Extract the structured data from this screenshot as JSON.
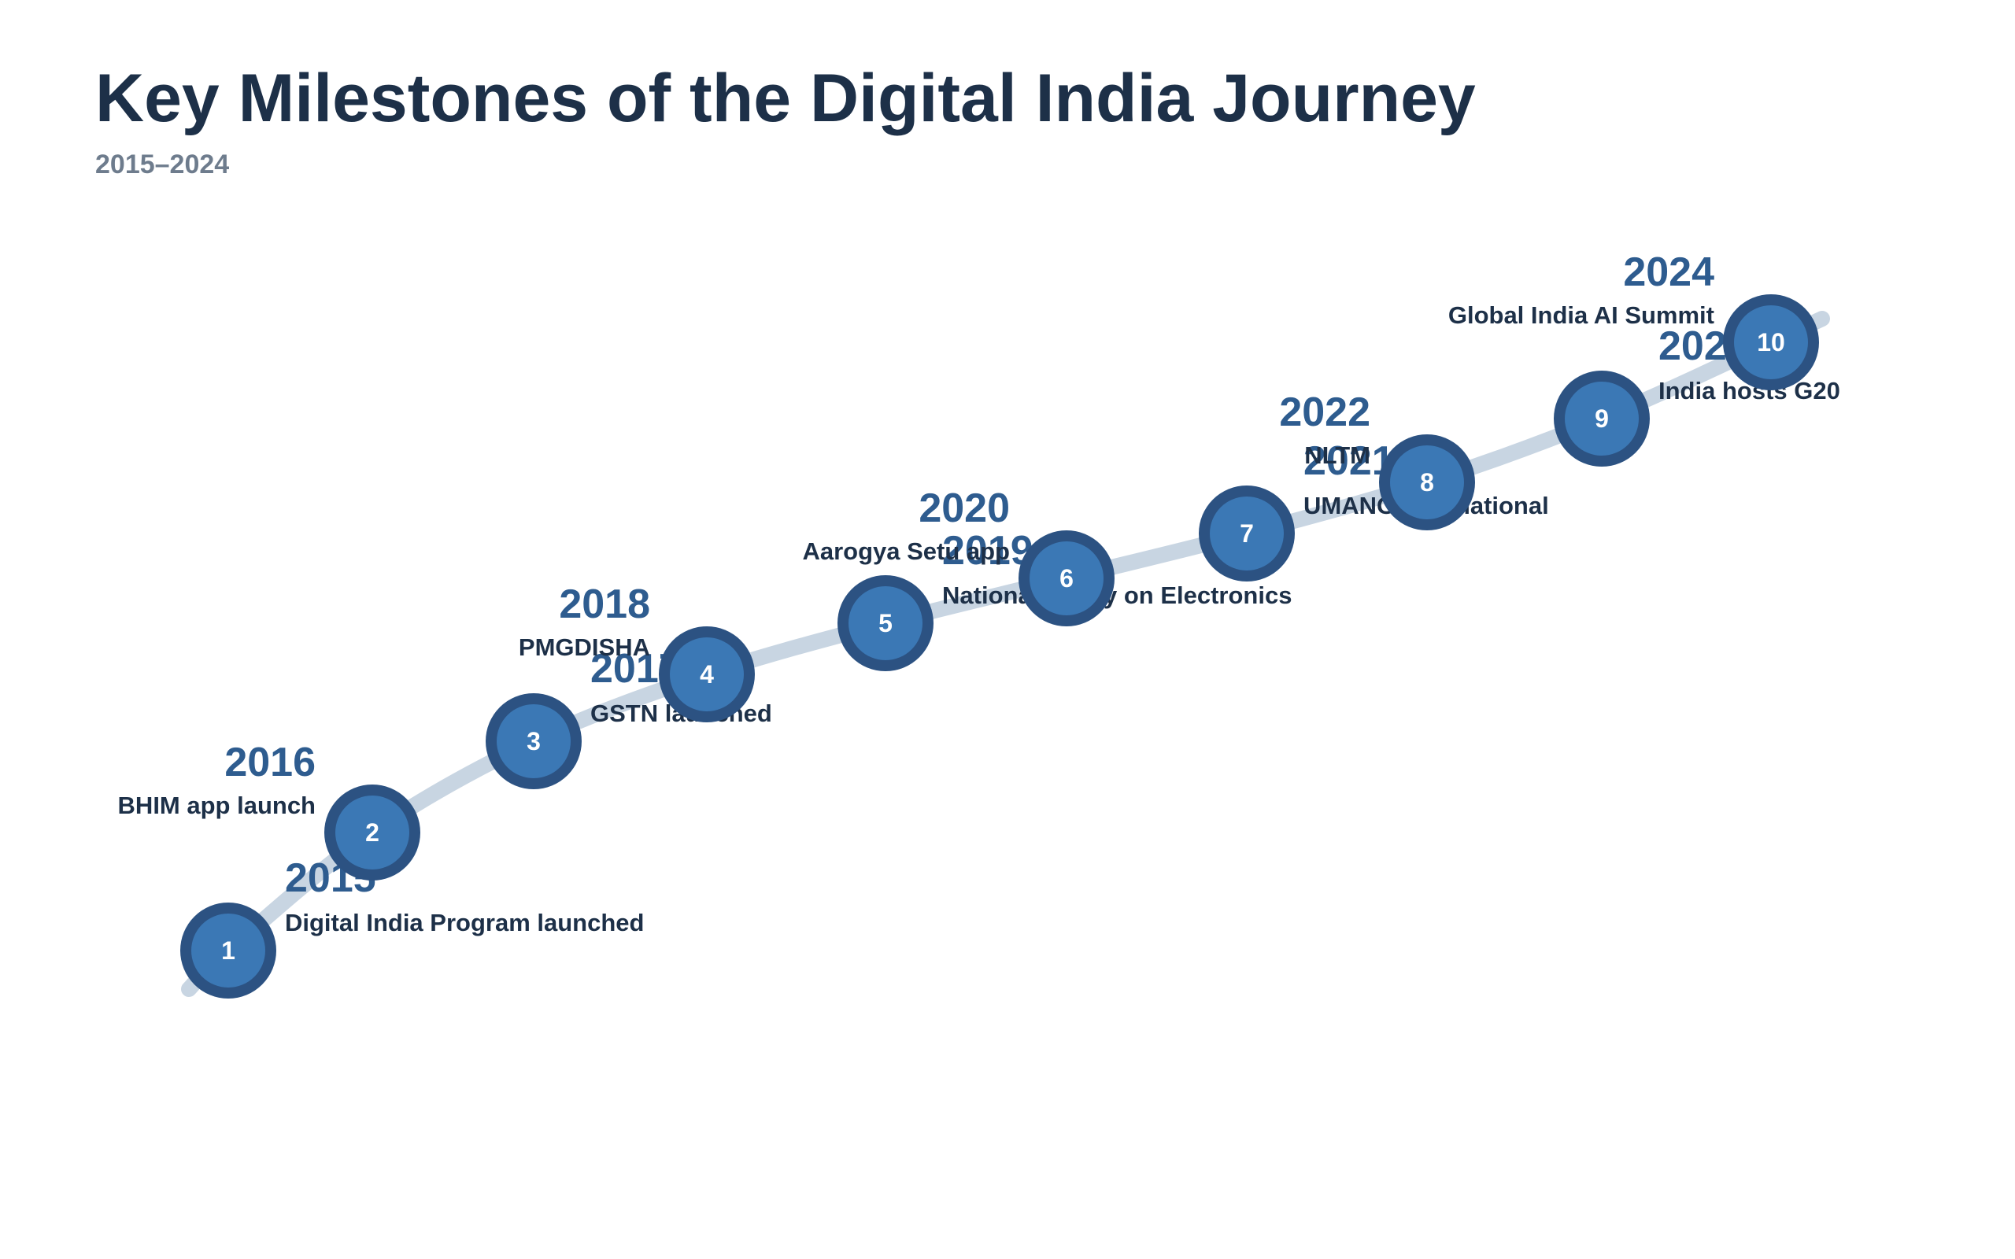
{
  "title": "Key Milestones of the Digital India Journey",
  "subtitle": "2015–2024",
  "colors": {
    "path": "#c8d5e2",
    "node_outer": "#2c5282",
    "node_inner": "#3b78b5",
    "node_text": "#ffffff",
    "year": "#2e5c8f",
    "label": "#1d3048",
    "title": "#1d3048",
    "subtitle": "#6e7c8d"
  },
  "milestones": [
    {
      "number": "1",
      "year": "2015",
      "label": "Digital India Program launched",
      "side": "right"
    },
    {
      "number": "2",
      "year": "2016",
      "label": "BHIM app launch",
      "side": "left"
    },
    {
      "number": "3",
      "year": "2017",
      "label": "GSTN launched",
      "side": "right"
    },
    {
      "number": "4",
      "year": "2018",
      "label": "PMGDISHA",
      "side": "left"
    },
    {
      "number": "5",
      "year": "2019",
      "label": "National Policy on Electronics",
      "side": "right"
    },
    {
      "number": "6",
      "year": "2020",
      "label": "Aarogya Setu app",
      "side": "left"
    },
    {
      "number": "7",
      "year": "2021",
      "label": "UMANG international",
      "side": "right"
    },
    {
      "number": "8",
      "year": "2022",
      "label": "NLTM",
      "side": "left"
    },
    {
      "number": "9",
      "year": "2023",
      "label": "India hosts G20",
      "side": "right"
    },
    {
      "number": "10",
      "year": "2024",
      "label": "Global India AI Summit",
      "side": "left"
    }
  ]
}
